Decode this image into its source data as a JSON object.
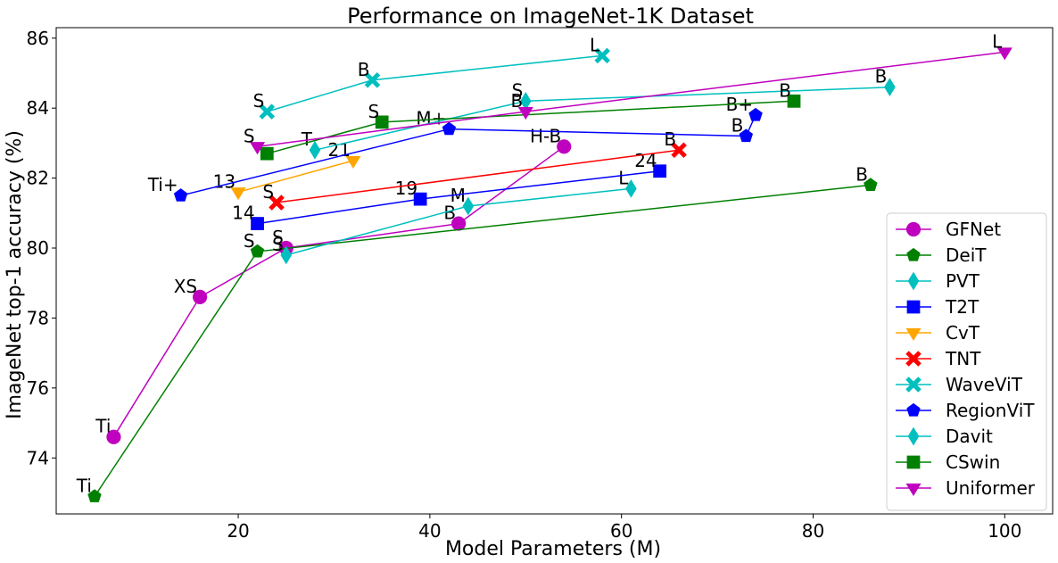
{
  "chart_data": {
    "type": "scatter",
    "title": "Performance on ImageNet-1K Dataset",
    "xlabel": "Model Parameters (M)",
    "ylabel": "ImageNet top-1 accuracy (%)",
    "xlim": [
      1,
      105
    ],
    "ylim": [
      72.4,
      86.3
    ],
    "xticks": [
      20,
      40,
      60,
      80,
      100
    ],
    "yticks": [
      74,
      76,
      78,
      80,
      82,
      84,
      86
    ],
    "grid": false,
    "legend_position": "lower-right",
    "series": [
      {
        "name": "GFNet",
        "color": "#bf00bf",
        "marker": "circle",
        "points": [
          {
            "x": 7,
            "y": 74.6,
            "label": "Ti"
          },
          {
            "x": 16,
            "y": 78.6,
            "label": "XS"
          },
          {
            "x": 25,
            "y": 80.0,
            "label": "S"
          },
          {
            "x": 43,
            "y": 80.7,
            "label": "B"
          },
          {
            "x": 54,
            "y": 82.9,
            "label": "H-B"
          }
        ]
      },
      {
        "name": "DeiT",
        "color": "#008000",
        "marker": "pentagon",
        "points": [
          {
            "x": 5,
            "y": 72.9,
            "label": "Ti"
          },
          {
            "x": 22,
            "y": 79.9,
            "label": "S"
          },
          {
            "x": 86,
            "y": 81.8,
            "label": "B"
          }
        ]
      },
      {
        "name": "PVT",
        "color": "#00bfbf",
        "marker": "thin_diamond",
        "points": [
          {
            "x": 25,
            "y": 79.8,
            "label": "S"
          },
          {
            "x": 44,
            "y": 81.2,
            "label": "M"
          },
          {
            "x": 61,
            "y": 81.7,
            "label": "L"
          }
        ]
      },
      {
        "name": "T2T",
        "color": "#0000ff",
        "marker": "square",
        "points": [
          {
            "x": 22,
            "y": 80.7,
            "label": "14"
          },
          {
            "x": 39,
            "y": 81.4,
            "label": "19"
          },
          {
            "x": 64,
            "y": 82.2,
            "label": "24"
          }
        ]
      },
      {
        "name": "CvT",
        "color": "#ffa500",
        "marker": "triangle_down",
        "points": [
          {
            "x": 20,
            "y": 81.6,
            "label": "13"
          },
          {
            "x": 32,
            "y": 82.5,
            "label": "21"
          }
        ]
      },
      {
        "name": "TNT",
        "color": "#ff0000",
        "marker": "x",
        "points": [
          {
            "x": 24,
            "y": 81.3,
            "label": "S"
          },
          {
            "x": 66,
            "y": 82.8,
            "label": "B"
          }
        ]
      },
      {
        "name": "WaveViT",
        "color": "#00bfbf",
        "marker": "x",
        "points": [
          {
            "x": 23,
            "y": 83.9,
            "label": "S"
          },
          {
            "x": 34,
            "y": 84.8,
            "label": "B"
          },
          {
            "x": 58,
            "y": 85.5,
            "label": "L"
          }
        ]
      },
      {
        "name": "RegionViT",
        "color": "#0000ff",
        "marker": "pentagon",
        "points": [
          {
            "x": 14,
            "y": 81.5,
            "label": "Ti+"
          },
          {
            "x": 42,
            "y": 83.4,
            "label": "M+"
          },
          {
            "x": 73,
            "y": 83.2,
            "label": "B"
          },
          {
            "x": 74,
            "y": 83.8,
            "label": "B+"
          }
        ]
      },
      {
        "name": "Davit",
        "color": "#00bfbf",
        "marker": "thin_diamond",
        "points": [
          {
            "x": 28,
            "y": 82.8,
            "label": "T"
          },
          {
            "x": 50,
            "y": 84.2,
            "label": "S"
          },
          {
            "x": 88,
            "y": 84.6,
            "label": "B"
          }
        ]
      },
      {
        "name": "CSwin",
        "color": "#008000",
        "marker": "square",
        "points": [
          {
            "x": 23,
            "y": 82.7,
            "label": ""
          },
          {
            "x": 35,
            "y": 83.6,
            "label": "S"
          },
          {
            "x": 78,
            "y": 84.2,
            "label": "B"
          }
        ]
      },
      {
        "name": "Uniformer",
        "color": "#bf00bf",
        "marker": "triangle_down",
        "points": [
          {
            "x": 22,
            "y": 82.9,
            "label": "S"
          },
          {
            "x": 50,
            "y": 83.9,
            "label": "B"
          },
          {
            "x": 100,
            "y": 85.6,
            "label": "L"
          }
        ]
      }
    ]
  }
}
